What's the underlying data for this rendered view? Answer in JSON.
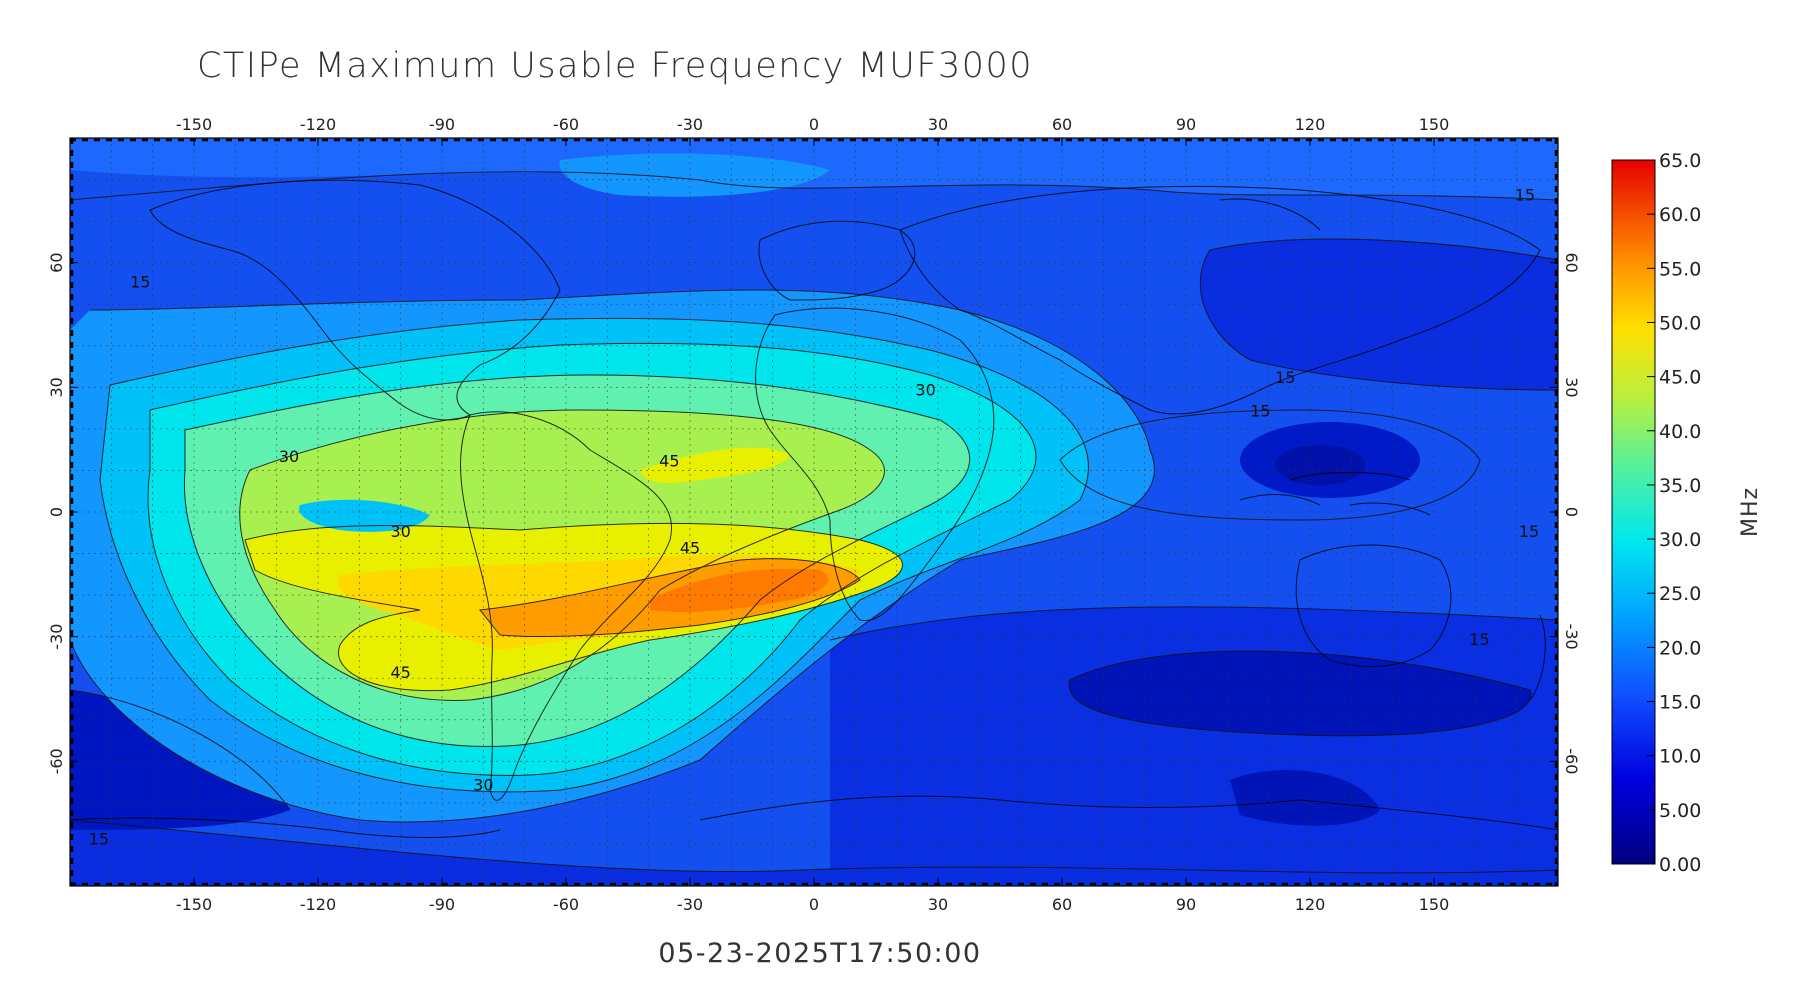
{
  "figure": {
    "title": "CTIPe Maximum Usable Frequency MUF3000",
    "timestamp": "05-23-2025T17:50:00"
  },
  "chart_data": {
    "type": "heatmap",
    "title": "CTIPe Maximum Usable Frequency MUF3000",
    "xlim": [
      -180,
      180
    ],
    "ylim": [
      -90,
      90
    ],
    "x_ticks": [
      -150,
      -120,
      -90,
      -60,
      -30,
      0,
      30,
      60,
      90,
      120,
      150
    ],
    "y_ticks": [
      -60,
      -30,
      0,
      30,
      60
    ],
    "grid": true,
    "colorbar": {
      "label": "MHz",
      "min": 0,
      "max": 65,
      "ticks": [
        "65.0",
        "60.0",
        "55.0",
        "50.0",
        "45.0",
        "40.0",
        "35.0",
        "30.0",
        "25.0",
        "20.0",
        "15.0",
        "10.0",
        "5.00",
        "0.00"
      ]
    },
    "contour_labels": [
      {
        "text": "15",
        "lon": -163,
        "lat": 54
      },
      {
        "text": "30",
        "lon": -127,
        "lat": 12
      },
      {
        "text": "30",
        "lon": -100,
        "lat": -6
      },
      {
        "text": "45",
        "lon": -35,
        "lat": 11
      },
      {
        "text": "45",
        "lon": -30,
        "lat": -10
      },
      {
        "text": "45",
        "lon": -100,
        "lat": -40
      },
      {
        "text": "30",
        "lon": -80,
        "lat": -67
      },
      {
        "text": "30",
        "lon": 27,
        "lat": 28
      },
      {
        "text": "15",
        "lon": 114,
        "lat": 31
      },
      {
        "text": "15",
        "lon": 108,
        "lat": 23
      },
      {
        "text": "15",
        "lon": 173,
        "lat": -6
      },
      {
        "text": "15",
        "lon": 172,
        "lat": 75
      },
      {
        "text": "15",
        "lon": 161,
        "lat": -32
      },
      {
        "text": "15",
        "lon": -173,
        "lat": -80
      }
    ]
  }
}
